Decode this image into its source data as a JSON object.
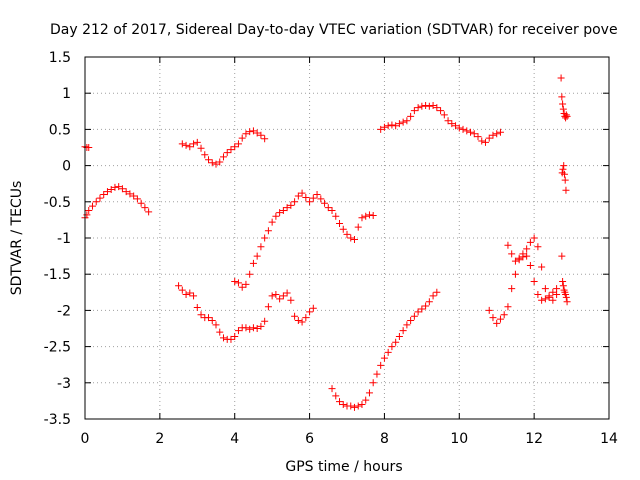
{
  "chart_data": {
    "type": "scatter",
    "title": "Day 212 of 2017, Sidereal Day-to-day VTEC variation (SDTVAR) for receiver pove",
    "xlabel": "GPS time / hours",
    "ylabel": "SDTVAR / TECUs",
    "xlim": [
      0,
      14
    ],
    "ylim": [
      -3.5,
      1.5
    ],
    "xticks": [
      "0",
      "2",
      "4",
      "6",
      "8",
      "10",
      "12",
      "14"
    ],
    "yticks": [
      "1.5",
      "1",
      "0.5",
      "0",
      "-0.5",
      "-1",
      "-1.5",
      "-2",
      "-2.5",
      "-3",
      "-3.5"
    ],
    "grid": true,
    "marker": "+",
    "color": "#ff0000",
    "series": [
      {
        "x": [
          0.0,
          0.05,
          0.1
        ],
        "y": [
          0.26,
          0.25,
          0.25
        ]
      },
      {
        "x": [
          0.0,
          0.05,
          0.1,
          0.2,
          0.3,
          0.4,
          0.5,
          0.6,
          0.7,
          0.8,
          0.9,
          1.0,
          1.1,
          1.2,
          1.3,
          1.4,
          1.5,
          1.6,
          1.7
        ],
        "y": [
          -0.72,
          -0.68,
          -0.62,
          -0.56,
          -0.5,
          -0.45,
          -0.4,
          -0.36,
          -0.33,
          -0.3,
          -0.29,
          -0.32,
          -0.36,
          -0.39,
          -0.42,
          -0.46,
          -0.52,
          -0.58,
          -0.64
        ]
      },
      {
        "x": [
          2.6,
          2.7,
          2.8,
          2.9,
          3.0,
          3.1,
          3.2,
          3.3,
          3.4,
          3.5,
          3.6,
          3.7,
          3.8,
          3.9,
          4.0,
          4.1,
          4.2,
          4.3,
          4.4,
          4.5,
          4.6,
          4.7,
          4.8
        ],
        "y": [
          0.3,
          0.28,
          0.26,
          0.3,
          0.32,
          0.24,
          0.15,
          0.08,
          0.04,
          0.02,
          0.05,
          0.12,
          0.18,
          0.22,
          0.26,
          0.3,
          0.38,
          0.44,
          0.47,
          0.48,
          0.45,
          0.42,
          0.37
        ]
      },
      {
        "x": [
          2.5,
          2.6,
          2.7,
          2.8,
          2.9,
          3.0,
          3.1,
          3.2,
          3.3,
          3.4,
          3.5,
          3.6,
          3.7,
          3.8,
          3.9,
          4.0,
          4.1,
          4.2,
          4.3,
          4.4,
          4.5,
          4.6,
          4.7,
          4.8,
          4.9,
          5.0,
          5.1,
          5.2,
          5.3,
          5.4,
          5.5,
          5.6,
          5.7,
          5.8,
          5.9,
          6.0,
          6.1
        ],
        "y": [
          -1.66,
          -1.72,
          -1.78,
          -1.76,
          -1.8,
          -1.96,
          -2.06,
          -2.1,
          -2.1,
          -2.14,
          -2.2,
          -2.3,
          -2.38,
          -2.4,
          -2.4,
          -2.36,
          -2.28,
          -2.24,
          -2.24,
          -2.26,
          -2.24,
          -2.25,
          -2.22,
          -2.15,
          -1.95,
          -1.8,
          -1.78,
          -1.84,
          -1.8,
          -1.76,
          -1.86,
          -2.08,
          -2.14,
          -2.16,
          -2.1,
          -2.02,
          -1.97
        ]
      },
      {
        "x": [
          4.0,
          4.1,
          4.2,
          4.3,
          4.4,
          4.5,
          4.6,
          4.7,
          4.8,
          4.9,
          5.0,
          5.1,
          5.2,
          5.3,
          5.4,
          5.5,
          5.6,
          5.7,
          5.8,
          5.9,
          6.0,
          6.1,
          6.2,
          6.3,
          6.4,
          6.5,
          6.6,
          6.7,
          6.8,
          6.9,
          7.0,
          7.1,
          7.2,
          7.3,
          7.4,
          7.5,
          7.6,
          7.7
        ],
        "y": [
          -1.6,
          -1.62,
          -1.68,
          -1.64,
          -1.5,
          -1.35,
          -1.25,
          -1.12,
          -1.0,
          -0.9,
          -0.78,
          -0.7,
          -0.65,
          -0.62,
          -0.58,
          -0.55,
          -0.5,
          -0.42,
          -0.38,
          -0.44,
          -0.5,
          -0.45,
          -0.4,
          -0.46,
          -0.52,
          -0.58,
          -0.62,
          -0.7,
          -0.8,
          -0.88,
          -0.95,
          -1.0,
          -1.02,
          -0.85,
          -0.72,
          -0.7,
          -0.68,
          -0.69
        ]
      },
      {
        "x": [
          6.6,
          6.7,
          6.8,
          6.9,
          7.0,
          7.1,
          7.2,
          7.3,
          7.4,
          7.5,
          7.6,
          7.7,
          7.8,
          7.9,
          8.0,
          8.1,
          8.2,
          8.3,
          8.4,
          8.5,
          8.6,
          8.7,
          8.8,
          8.9,
          9.0,
          9.1,
          9.2,
          9.3,
          9.4
        ],
        "y": [
          -3.08,
          -3.18,
          -3.26,
          -3.3,
          -3.32,
          -3.32,
          -3.34,
          -3.32,
          -3.3,
          -3.24,
          -3.14,
          -3.0,
          -2.88,
          -2.76,
          -2.66,
          -2.58,
          -2.5,
          -2.44,
          -2.36,
          -2.28,
          -2.2,
          -2.14,
          -2.08,
          -2.02,
          -1.98,
          -1.94,
          -1.88,
          -1.8,
          -1.75
        ]
      },
      {
        "x": [
          7.9,
          8.0,
          8.1,
          8.2,
          8.3,
          8.4,
          8.5,
          8.6,
          8.7,
          8.8,
          8.9,
          9.0,
          9.1,
          9.2,
          9.3,
          9.4,
          9.5,
          9.6,
          9.7,
          9.8,
          9.9,
          10.0,
          10.1,
          10.2,
          10.3,
          10.4,
          10.5,
          10.6,
          10.7,
          10.8,
          10.9,
          11.0,
          11.1
        ],
        "y": [
          0.5,
          0.53,
          0.55,
          0.56,
          0.55,
          0.58,
          0.6,
          0.62,
          0.68,
          0.76,
          0.8,
          0.82,
          0.83,
          0.82,
          0.83,
          0.8,
          0.76,
          0.7,
          0.62,
          0.58,
          0.55,
          0.52,
          0.5,
          0.48,
          0.46,
          0.44,
          0.4,
          0.34,
          0.32,
          0.38,
          0.42,
          0.44,
          0.46
        ]
      },
      {
        "x": [
          10.8,
          10.9,
          11.0,
          11.1,
          11.2,
          11.3,
          11.4,
          11.5,
          11.6,
          11.7,
          11.8,
          11.9,
          12.0,
          12.1,
          12.2,
          12.3,
          12.4,
          12.5,
          12.6
        ],
        "y": [
          -2.0,
          -2.1,
          -2.18,
          -2.12,
          -2.06,
          -1.95,
          -1.7,
          -1.5,
          -1.3,
          -1.22,
          -1.15,
          -1.06,
          -1.0,
          -1.12,
          -1.4,
          -1.7,
          -1.82,
          -1.86,
          -1.78
        ]
      },
      {
        "x": [
          11.3,
          11.4,
          11.5,
          11.6,
          11.7,
          11.8,
          11.9,
          12.0,
          12.1,
          12.2,
          12.3,
          12.4,
          12.5,
          12.6
        ],
        "y": [
          -1.1,
          -1.22,
          -1.32,
          -1.28,
          -1.26,
          -1.25,
          -1.38,
          -1.6,
          -1.78,
          -1.86,
          -1.84,
          -1.8,
          -1.75,
          -1.7
        ]
      },
      {
        "x": [
          12.72,
          12.74,
          12.76,
          12.78,
          12.8,
          12.82,
          12.84,
          12.86,
          12.88,
          12.75,
          12.77,
          12.79,
          12.81,
          12.83,
          12.85,
          12.74,
          12.76,
          12.78,
          12.8,
          12.82,
          12.84,
          12.86,
          12.88
        ],
        "y": [
          1.21,
          0.95,
          0.85,
          0.78,
          0.72,
          0.68,
          0.66,
          0.7,
          0.68,
          -0.1,
          -0.05,
          0.0,
          -0.12,
          -0.2,
          -0.34,
          -1.25,
          -1.6,
          -1.66,
          -1.72,
          -1.75,
          -1.78,
          -1.82,
          -1.88
        ]
      }
    ]
  }
}
